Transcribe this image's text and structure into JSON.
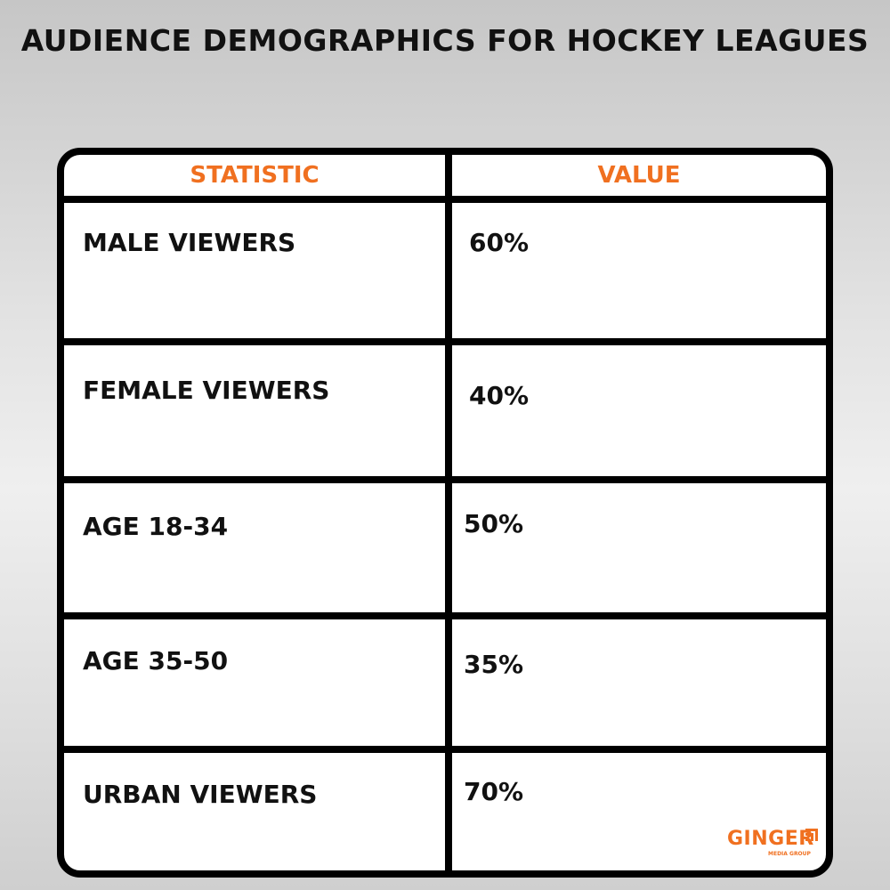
{
  "title": "AUDIENCE DEMOGRAPHICS FOR HOCKEY LEAGUES",
  "headers": [
    "STATISTIC",
    "VALUE"
  ],
  "rows": [
    {
      "statistic": "MALE VIEWERS",
      "value": "60%"
    },
    {
      "statistic": "FEMALE VIEWERS",
      "value": "40%"
    },
    {
      "statistic": "AGE 18-34",
      "value": "50%"
    },
    {
      "statistic": "AGE 35-50",
      "value": "35%"
    },
    {
      "statistic": "URBAN VIEWERS",
      "value": "70%"
    }
  ],
  "logo": {
    "name": "GINGER",
    "tagline": "MEDIA GROUP"
  },
  "colors": {
    "accent": "#f07020",
    "border": "#000000",
    "text": "#111111"
  }
}
